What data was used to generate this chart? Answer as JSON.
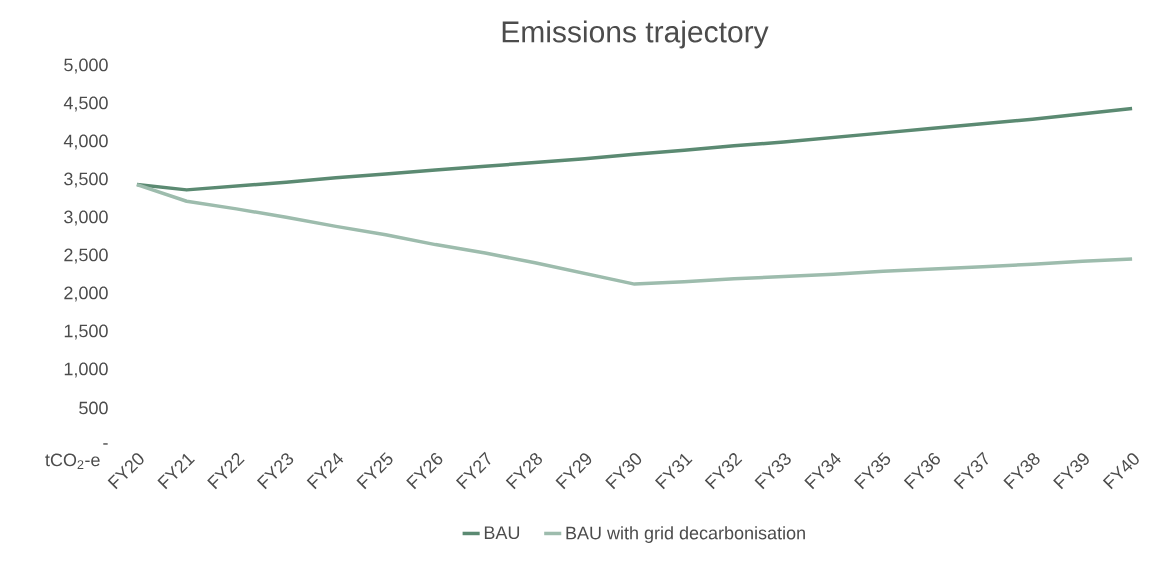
{
  "chart_data": {
    "type": "line",
    "title": "Emissions trajectory",
    "ylabel": "tCO$_{2}$-e",
    "categories": [
      "FY20",
      "FY21",
      "FY22",
      "FY23",
      "FY24",
      "FY25",
      "FY26",
      "FY27",
      "FY28",
      "FY29",
      "FY30",
      "FY31",
      "FY32",
      "FY33",
      "FY34",
      "FY35",
      "FY36",
      "FY37",
      "FY38",
      "FY39",
      "FY40"
    ],
    "series": [
      {
        "name": "BAU",
        "color": "#5b8a72",
        "values": [
          3440,
          3370,
          3420,
          3470,
          3530,
          3580,
          3630,
          3680,
          3730,
          3780,
          3840,
          3890,
          3950,
          4000,
          4060,
          4120,
          4180,
          4240,
          4300,
          4370,
          4440
        ]
      },
      {
        "name": "BAU with grid decarbonisation",
        "color": "#9dbcad",
        "values": [
          3440,
          3220,
          3120,
          3010,
          2890,
          2780,
          2650,
          2540,
          2410,
          2270,
          2130,
          2160,
          2200,
          2230,
          2260,
          2300,
          2330,
          2360,
          2390,
          2430,
          2460
        ]
      }
    ],
    "ylim": [
      0,
      5000
    ],
    "yticks": [
      {
        "value": 0,
        "label": "-"
      },
      {
        "value": 500,
        "label": "500"
      },
      {
        "value": 1000,
        "label": "1,000"
      },
      {
        "value": 1500,
        "label": "1,500"
      },
      {
        "value": 2000,
        "label": "2,000"
      },
      {
        "value": 2500,
        "label": "2,500"
      },
      {
        "value": 3000,
        "label": "3,000"
      },
      {
        "value": 3500,
        "label": "3,500"
      },
      {
        "value": 4000,
        "label": "4,000"
      },
      {
        "value": 4500,
        "label": "4,500"
      },
      {
        "value": 5000,
        "label": "5,000"
      }
    ],
    "legend": "bottom",
    "grid": false,
    "marker": "none",
    "line_style": "solid"
  }
}
